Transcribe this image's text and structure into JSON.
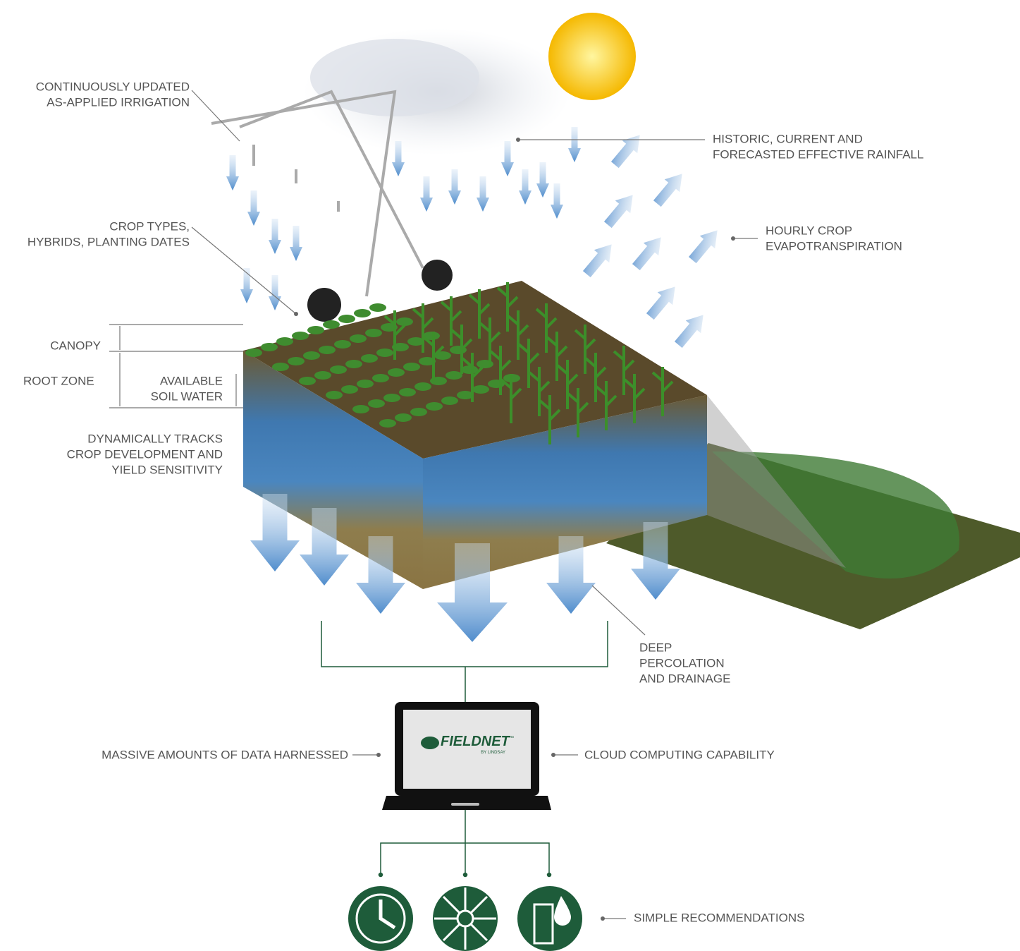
{
  "labels": [
    {
      "lines": [
        "CONTINUOUSLY UPDATED",
        "AS-APPLIED IRRIGATION"
      ]
    },
    {
      "lines": [
        "CROP TYPES,",
        "HYBRIDS, PLANTING DATES"
      ]
    },
    {
      "lines": [
        "CANOPY"
      ]
    },
    {
      "lines": [
        "ROOT ZONE"
      ]
    },
    {
      "lines": [
        "AVAILABLE",
        "SOIL WATER"
      ]
    },
    {
      "lines": [
        "DYNAMICALLY TRACKS",
        "CROP DEVELOPMENT AND",
        "YIELD SENSITIVITY"
      ]
    },
    {
      "lines": [
        "HISTORIC, CURRENT AND",
        "FORECASTED EFFECTIVE RAINFALL"
      ]
    },
    {
      "lines": [
        "HOURLY CROP",
        "EVAPOTRANSPIRATION"
      ]
    },
    {
      "lines": [
        "DEEP",
        "PERCOLATION",
        "AND DRAINAGE"
      ]
    },
    {
      "lines": [
        "MASSIVE AMOUNTS OF DATA HARNESSED"
      ]
    },
    {
      "lines": [
        "CLOUD COMPUTING CAPABILITY"
      ]
    },
    {
      "lines": [
        "SIMPLE RECOMMENDATIONS"
      ]
    }
  ],
  "logo": {
    "name": "FIELDNET",
    "trademark": "™",
    "byline": "BY LINDSAY"
  }
}
